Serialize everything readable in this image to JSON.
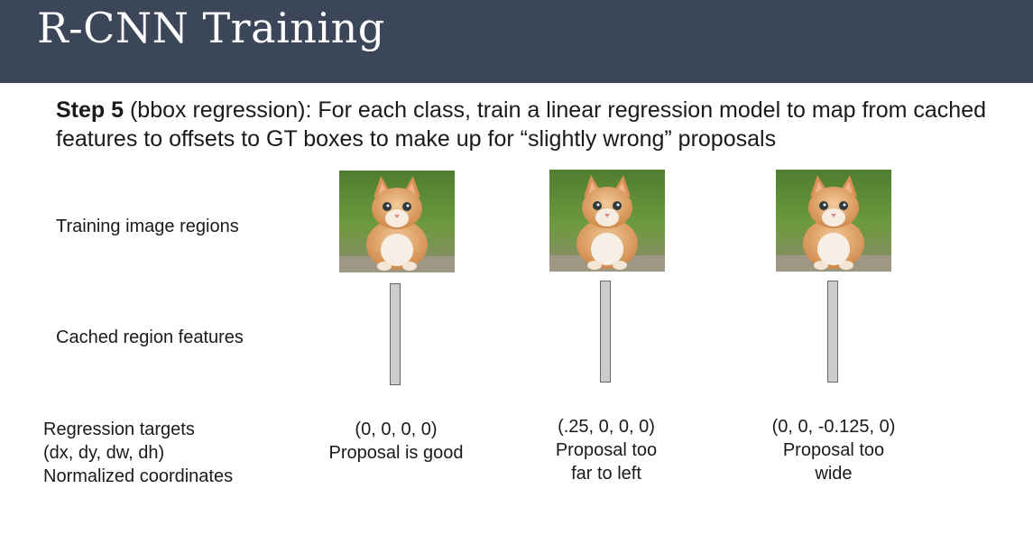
{
  "slide": {
    "title": "R-CNN Training",
    "step_label": "Step 5",
    "step_text": " (bbox regression): For each class, train a linear regression model to map from cached features to offsets to GT boxes to make up for “slightly wrong” proposals"
  },
  "labels": {
    "training_regions": "Training image regions",
    "cached_features": "Cached region features",
    "targets_line1": "Regression targets",
    "targets_line2": "(dx, dy, dw, dh)",
    "targets_line3": "Normalized coordinates"
  },
  "examples": [
    {
      "target": "(0, 0, 0, 0)",
      "desc_line1": "Proposal is good",
      "desc_line2": ""
    },
    {
      "target": "(.25, 0, 0, 0)",
      "desc_line1": "Proposal too",
      "desc_line2": "far to left"
    },
    {
      "target": "(0, 0, -0.125, 0)",
      "desc_line1": "Proposal too",
      "desc_line2": "wide"
    }
  ],
  "colors": {
    "header_bg": "#3b4658",
    "feature_fill": "#cccccc",
    "feature_border": "#666666"
  }
}
